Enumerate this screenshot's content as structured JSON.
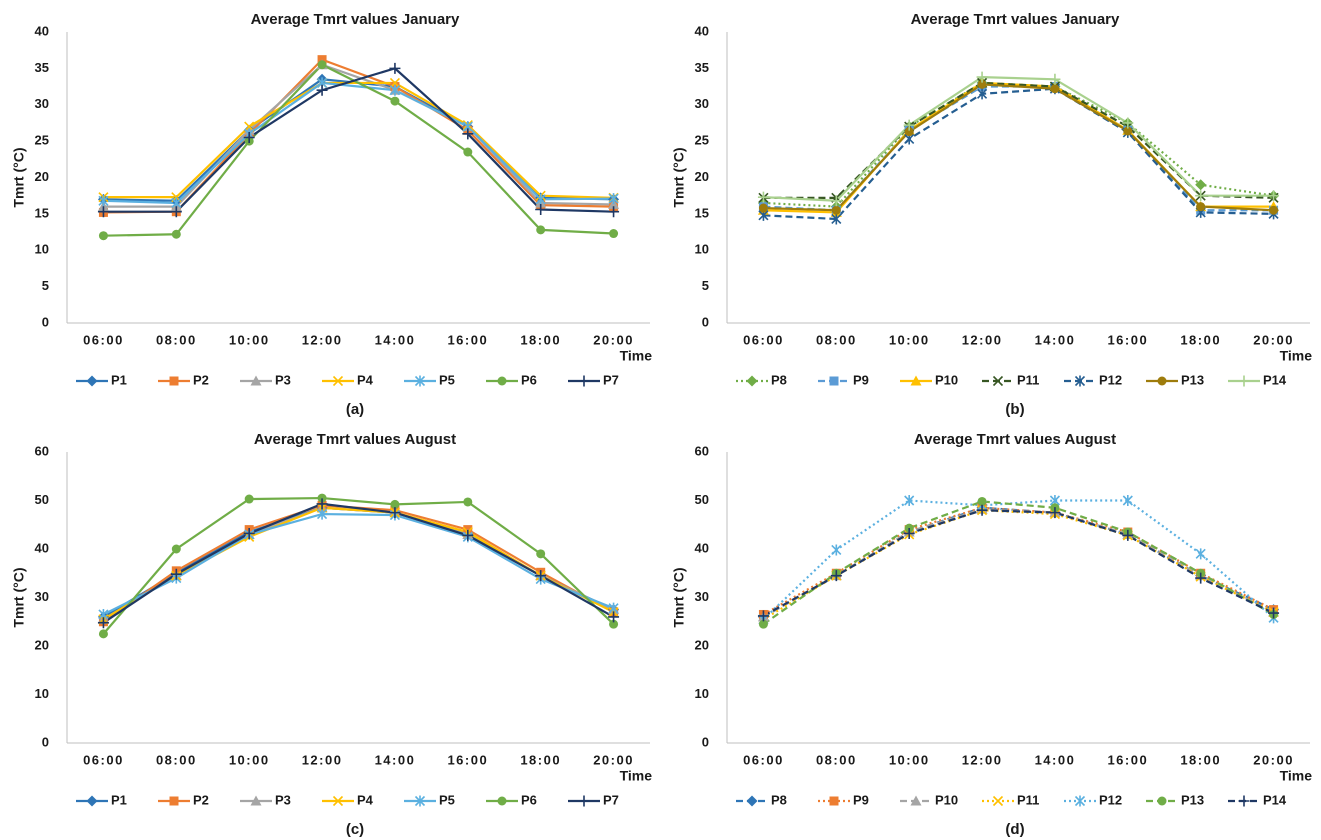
{
  "chart_data": [
    {
      "type": "line",
      "title": "Average Tmrt values January",
      "panel_label": "(a)",
      "x_label": "Time",
      "y_label": "Tmrt (°C)",
      "categories": [
        "06:00",
        "08:00",
        "10:00",
        "12:00",
        "14:00",
        "16:00",
        "18:00",
        "20:00"
      ],
      "ylim": [
        0,
        40
      ],
      "yticks": [
        0,
        5,
        10,
        15,
        20,
        25,
        30,
        35,
        40
      ],
      "grid": false,
      "series": [
        {
          "name": "P1",
          "color": "#2e75b6",
          "dash": "solid",
          "marker": "diamond",
          "values": [
            17.0,
            16.8,
            26.5,
            33.5,
            32.5,
            27.0,
            17.2,
            17.0
          ]
        },
        {
          "name": "P2",
          "color": "#ed7d31",
          "dash": "solid",
          "marker": "square",
          "values": [
            15.2,
            15.3,
            26.0,
            36.2,
            32.5,
            26.5,
            16.2,
            16.0
          ]
        },
        {
          "name": "P3",
          "color": "#a5a5a5",
          "dash": "solid",
          "marker": "triangle",
          "values": [
            16.0,
            16.0,
            26.5,
            35.5,
            32.0,
            27.0,
            16.5,
            16.3
          ]
        },
        {
          "name": "P4",
          "color": "#ffc000",
          "dash": "solid",
          "marker": "x",
          "values": [
            17.3,
            17.3,
            27.0,
            33.0,
            33.0,
            27.2,
            17.5,
            17.2
          ]
        },
        {
          "name": "P5",
          "color": "#5bb0e0",
          "dash": "solid",
          "marker": "star",
          "values": [
            16.8,
            16.5,
            26.0,
            33.0,
            32.0,
            27.0,
            17.0,
            17.1
          ]
        },
        {
          "name": "P6",
          "color": "#70ad47",
          "dash": "solid",
          "marker": "circle",
          "values": [
            12.0,
            12.2,
            25.0,
            35.5,
            30.5,
            23.5,
            12.8,
            12.3
          ]
        },
        {
          "name": "P7",
          "color": "#1f3864",
          "dash": "solid",
          "marker": "plus",
          "values": [
            15.3,
            15.3,
            25.5,
            32.0,
            35.0,
            26.0,
            15.6,
            15.3
          ]
        }
      ]
    },
    {
      "type": "line",
      "title": "Average Tmrt values January",
      "panel_label": "(b)",
      "x_label": "Time",
      "y_label": "Tmrt (°C)",
      "categories": [
        "06:00",
        "08:00",
        "10:00",
        "12:00",
        "14:00",
        "16:00",
        "18:00",
        "20:00"
      ],
      "ylim": [
        0,
        40
      ],
      "yticks": [
        0,
        5,
        10,
        15,
        20,
        25,
        30,
        35,
        40
      ],
      "grid": false,
      "series": [
        {
          "name": "P8",
          "color": "#70ad47",
          "dash": "dot",
          "marker": "diamond",
          "values": [
            16.5,
            16.0,
            27.0,
            33.0,
            32.5,
            27.5,
            19.0,
            17.5
          ]
        },
        {
          "name": "P9",
          "color": "#5b9bd5",
          "dash": "dash",
          "marker": "square",
          "values": [
            16.0,
            15.5,
            26.5,
            32.5,
            32.5,
            26.5,
            15.5,
            15.5
          ]
        },
        {
          "name": "P10",
          "color": "#ffc000",
          "dash": "solid",
          "marker": "triangle",
          "values": [
            15.5,
            15.2,
            26.5,
            33.0,
            32.5,
            26.5,
            16.0,
            16.0
          ]
        },
        {
          "name": "P11",
          "color": "#375623",
          "dash": "dash",
          "marker": "x",
          "values": [
            17.2,
            17.2,
            27.0,
            33.0,
            32.5,
            27.0,
            17.5,
            17.2
          ]
        },
        {
          "name": "P12",
          "color": "#255e91",
          "dash": "dash",
          "marker": "star",
          "values": [
            14.8,
            14.3,
            25.3,
            31.5,
            32.2,
            26.2,
            15.2,
            15.0
          ]
        },
        {
          "name": "P13",
          "color": "#9e7c0c",
          "dash": "solid",
          "marker": "circle",
          "values": [
            15.8,
            15.5,
            26.3,
            32.8,
            32.2,
            26.4,
            16.0,
            15.5
          ]
        },
        {
          "name": "P14",
          "color": "#a9d18e",
          "dash": "solid",
          "marker": "plus",
          "values": [
            17.3,
            16.8,
            27.2,
            33.8,
            33.5,
            27.5,
            17.5,
            17.5
          ]
        }
      ]
    },
    {
      "type": "line",
      "title": "Average Tmrt values August",
      "panel_label": "(c)",
      "x_label": "Time",
      "y_label": "Tmrt (°C)",
      "categories": [
        "06:00",
        "08:00",
        "10:00",
        "12:00",
        "14:00",
        "16:00",
        "18:00",
        "20:00"
      ],
      "ylim": [
        0,
        60
      ],
      "yticks": [
        0,
        10,
        20,
        30,
        40,
        50,
        60
      ],
      "grid": false,
      "series": [
        {
          "name": "P1",
          "color": "#2e75b6",
          "dash": "solid",
          "marker": "diamond",
          "values": [
            26.0,
            35.0,
            43.5,
            48.5,
            47.5,
            43.0,
            34.5,
            27.5
          ]
        },
        {
          "name": "P2",
          "color": "#ed7d31",
          "dash": "solid",
          "marker": "square",
          "values": [
            25.0,
            35.5,
            44.0,
            49.0,
            48.0,
            44.0,
            35.2,
            27.0
          ]
        },
        {
          "name": "P3",
          "color": "#a5a5a5",
          "dash": "solid",
          "marker": "triangle",
          "values": [
            25.5,
            34.5,
            43.0,
            48.5,
            47.5,
            43.0,
            34.5,
            27.5
          ]
        },
        {
          "name": "P4",
          "color": "#ffc000",
          "dash": "solid",
          "marker": "x",
          "values": [
            25.5,
            34.5,
            42.5,
            48.5,
            47.5,
            43.5,
            34.5,
            27.0
          ]
        },
        {
          "name": "P5",
          "color": "#5bb0e0",
          "dash": "solid",
          "marker": "star",
          "values": [
            26.5,
            34.0,
            43.0,
            47.2,
            47.0,
            42.5,
            33.8,
            27.8
          ]
        },
        {
          "name": "P6",
          "color": "#70ad47",
          "dash": "solid",
          "marker": "circle",
          "values": [
            22.5,
            40.0,
            50.3,
            50.5,
            49.2,
            49.7,
            39.0,
            24.5
          ]
        },
        {
          "name": "P7",
          "color": "#1f3864",
          "dash": "solid",
          "marker": "plus",
          "values": [
            24.8,
            34.8,
            43.2,
            49.3,
            47.5,
            42.8,
            34.5,
            26.0
          ]
        }
      ]
    },
    {
      "type": "line",
      "title": "Average Tmrt values August",
      "panel_label": "(d)",
      "x_label": "Time",
      "y_label": "Tmrt (°C)",
      "categories": [
        "06:00",
        "08:00",
        "10:00",
        "12:00",
        "14:00",
        "16:00",
        "18:00",
        "20:00"
      ],
      "ylim": [
        0,
        60
      ],
      "yticks": [
        0,
        10,
        20,
        30,
        40,
        50,
        60
      ],
      "grid": false,
      "series": [
        {
          "name": "P8",
          "color": "#2e75b6",
          "dash": "dash",
          "marker": "diamond",
          "values": [
            26.0,
            34.5,
            43.5,
            48.5,
            47.5,
            43.0,
            34.5,
            27.5
          ]
        },
        {
          "name": "P9",
          "color": "#ed7d31",
          "dash": "dot",
          "marker": "square",
          "values": [
            26.5,
            35.0,
            44.0,
            48.5,
            47.5,
            43.5,
            35.0,
            27.5
          ]
        },
        {
          "name": "P10",
          "color": "#a5a5a5",
          "dash": "dash",
          "marker": "triangle",
          "values": [
            26.0,
            34.5,
            43.5,
            48.2,
            47.5,
            43.0,
            34.5,
            27.0
          ]
        },
        {
          "name": "P11",
          "color": "#ffc000",
          "dash": "dot",
          "marker": "x",
          "values": [
            25.5,
            34.5,
            43.0,
            48.0,
            47.2,
            42.8,
            34.3,
            27.0
          ]
        },
        {
          "name": "P12",
          "color": "#5bb0e0",
          "dash": "dot",
          "marker": "star",
          "values": [
            25.5,
            39.8,
            50.0,
            49.0,
            50.0,
            50.0,
            39.0,
            25.8
          ]
        },
        {
          "name": "P13",
          "color": "#70ad47",
          "dash": "dash",
          "marker": "circle",
          "values": [
            24.5,
            35.0,
            44.3,
            49.8,
            48.5,
            43.5,
            35.0,
            26.5
          ]
        },
        {
          "name": "P14",
          "color": "#1f3864",
          "dash": "dash",
          "marker": "plus",
          "values": [
            26.2,
            34.5,
            43.2,
            48.0,
            47.5,
            42.8,
            34.0,
            26.8
          ]
        }
      ]
    }
  ]
}
